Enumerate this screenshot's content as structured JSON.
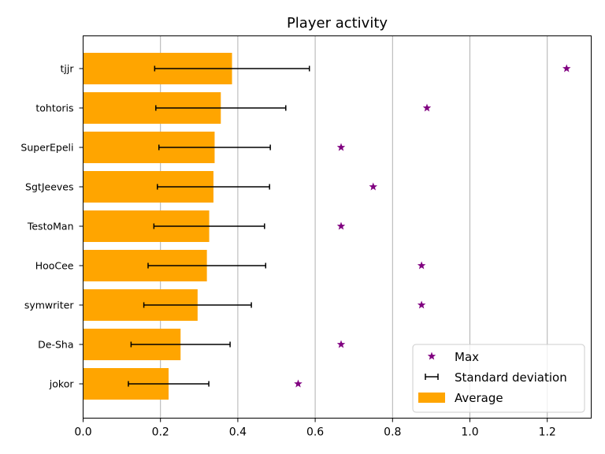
{
  "chart_data": {
    "type": "bar",
    "orientation": "horizontal",
    "title": "Player activity",
    "xlabel": "",
    "ylabel": "",
    "xlim": [
      0,
      1.312
    ],
    "xticks": [
      0.0,
      0.2,
      0.4,
      0.6,
      0.8,
      1.0,
      1.2
    ],
    "xtick_labels": [
      "0.0",
      "0.2",
      "0.4",
      "0.6",
      "0.8",
      "1.0",
      "1.2"
    ],
    "grid": "vertical",
    "categories": [
      "tjjr",
      "tohtoris",
      "SuperEpeli",
      "SgtJeeves",
      "TestoMan",
      "HooCee",
      "symwriter",
      "De-Sha",
      "jokor"
    ],
    "series": [
      {
        "name": "Average",
        "kind": "bar",
        "color": "#ffa500",
        "values": [
          0.385,
          0.356,
          0.34,
          0.337,
          0.326,
          0.32,
          0.296,
          0.252,
          0.221
        ]
      },
      {
        "name": "Standard deviation",
        "kind": "errorbar",
        "color": "#000000",
        "values": [
          0.2,
          0.168,
          0.144,
          0.145,
          0.143,
          0.152,
          0.139,
          0.128,
          0.104
        ]
      },
      {
        "name": "Max",
        "kind": "scatter",
        "marker": "star",
        "color": "#800080",
        "values": [
          1.25,
          0.889,
          0.667,
          0.75,
          0.667,
          0.875,
          0.875,
          0.667,
          0.556
        ]
      }
    ],
    "legend": {
      "position": "lower-right",
      "entries": [
        "Max",
        "Standard deviation",
        "Average"
      ]
    }
  }
}
